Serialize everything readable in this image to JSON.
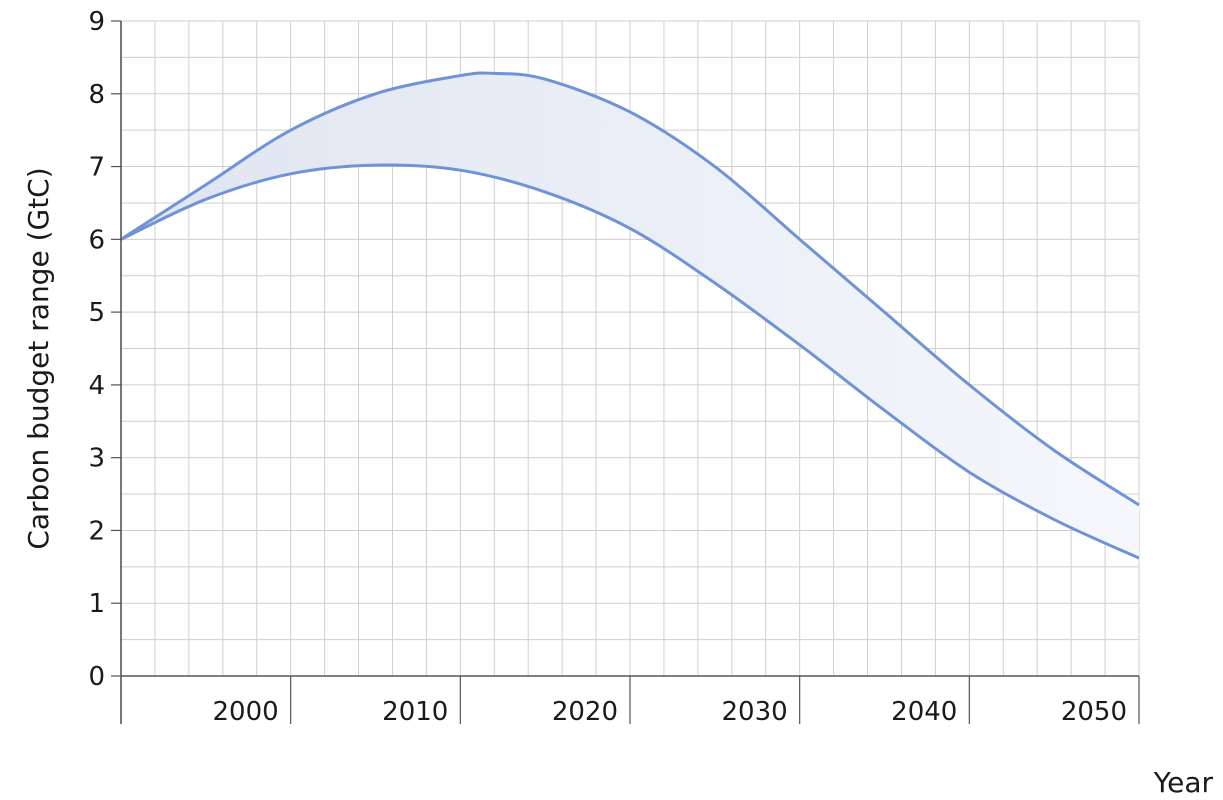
{
  "chart_data": {
    "type": "area",
    "title": "",
    "xlabel": "Year",
    "ylabel": "Carbon budget range (GtC)",
    "xlim": [
      1990,
      2050
    ],
    "ylim": [
      0,
      9
    ],
    "x_ticks": [
      {
        "value": 2000,
        "label": "2000"
      },
      {
        "value": 2010,
        "label": "2010"
      },
      {
        "value": 2020,
        "label": "2020"
      },
      {
        "value": 2030,
        "label": "2030"
      },
      {
        "value": 2040,
        "label": "2040"
      },
      {
        "value": 2050,
        "label": "2050"
      }
    ],
    "y_ticks": [
      {
        "value": 0,
        "label": "0"
      },
      {
        "value": 1,
        "label": "1"
      },
      {
        "value": 2,
        "label": "2"
      },
      {
        "value": 3,
        "label": "3"
      },
      {
        "value": 4,
        "label": "4"
      },
      {
        "value": 5,
        "label": "5"
      },
      {
        "value": 6,
        "label": "6"
      },
      {
        "value": 7,
        "label": "7"
      },
      {
        "value": 8,
        "label": "8"
      },
      {
        "value": 9,
        "label": "9"
      }
    ],
    "grid": true,
    "grid_minor": true,
    "series": [
      {
        "role": "upper",
        "x": [
          1990,
          1995,
          2000,
          2005,
          2010,
          2012,
          2015,
          2020,
          2025,
          2030,
          2035,
          2040,
          2045,
          2050
        ],
        "values": [
          6.0,
          6.75,
          7.5,
          8.0,
          8.25,
          8.28,
          8.2,
          7.75,
          7.0,
          6.0,
          5.0,
          4.0,
          3.1,
          2.35
        ]
      },
      {
        "role": "lower",
        "x": [
          1990,
          1995,
          2000,
          2005,
          2010,
          2015,
          2020,
          2025,
          2030,
          2035,
          2040,
          2045,
          2050
        ],
        "values": [
          6.0,
          6.55,
          6.9,
          7.02,
          6.95,
          6.65,
          6.15,
          5.4,
          4.55,
          3.65,
          2.8,
          2.15,
          1.62
        ]
      }
    ],
    "colors": {
      "line": "#6f93d6",
      "band_fill_start": "#dfe5f1",
      "band_fill_end": "#f5f7fc",
      "grid": "#cfcfcf",
      "axis": "#555555"
    }
  }
}
